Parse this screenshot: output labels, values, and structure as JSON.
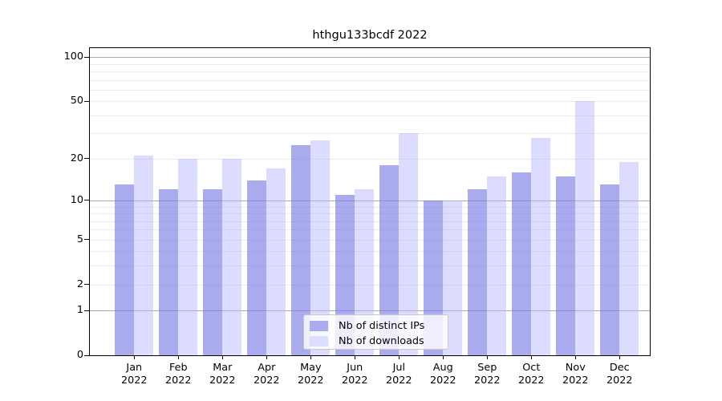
{
  "title": "hthgu133bcdf 2022",
  "chart_data": {
    "type": "bar",
    "title": "hthgu133bcdf 2022",
    "year": "2022",
    "months": [
      "Jan",
      "Feb",
      "Mar",
      "Apr",
      "May",
      "Jun",
      "Jul",
      "Aug",
      "Sep",
      "Oct",
      "Nov",
      "Dec"
    ],
    "categories": [
      "Jan 2022",
      "Feb 2022",
      "Mar 2022",
      "Apr 2022",
      "May 2022",
      "Jun 2022",
      "Jul 2022",
      "Aug 2022",
      "Sep 2022",
      "Oct 2022",
      "Nov 2022",
      "Dec 2022"
    ],
    "series": [
      {
        "name": "Nb of distinct IPs",
        "color": "#aaaaee",
        "fill_rgba": "rgba(124,124,230,0.65)",
        "values": [
          13,
          12,
          12,
          14,
          25,
          11,
          18,
          10,
          12,
          16,
          15,
          13
        ]
      },
      {
        "name": "Nb of downloads",
        "color": "#ddddff",
        "fill_rgba": "rgba(180,180,255,0.47)",
        "values": [
          21,
          20,
          20,
          17,
          27,
          12,
          30,
          10,
          15,
          28,
          50,
          19
        ]
      }
    ],
    "y_axis": {
      "scale": "log10(1+x)",
      "tick_values": [
        0,
        1,
        2,
        5,
        10,
        20,
        50,
        100
      ],
      "tick_labels": [
        "0",
        "1",
        "2",
        "5",
        "10",
        "20",
        "50",
        "100"
      ],
      "grid_values": [
        1,
        2,
        3,
        4,
        5,
        6,
        7,
        8,
        9,
        10,
        20,
        30,
        40,
        50,
        60,
        70,
        80,
        90,
        100
      ],
      "major_grid_values": [
        1,
        10,
        100
      ],
      "ylim": [
        0,
        100
      ]
    },
    "legend": {
      "entries": [
        "Nb of distinct IPs",
        "Nb of downloads"
      ],
      "position": "bottom-center"
    },
    "grid": true
  },
  "colors": {
    "grid_minor": "#ebebeb",
    "grid_major": "#a9a9a9",
    "axis": "#000000",
    "legend_bg": "rgba(255,255,255,0.8)",
    "legend_border": "#c8c8c8",
    "ips_bar": "#aaaaee",
    "downloads_bar": "#ddddff"
  }
}
